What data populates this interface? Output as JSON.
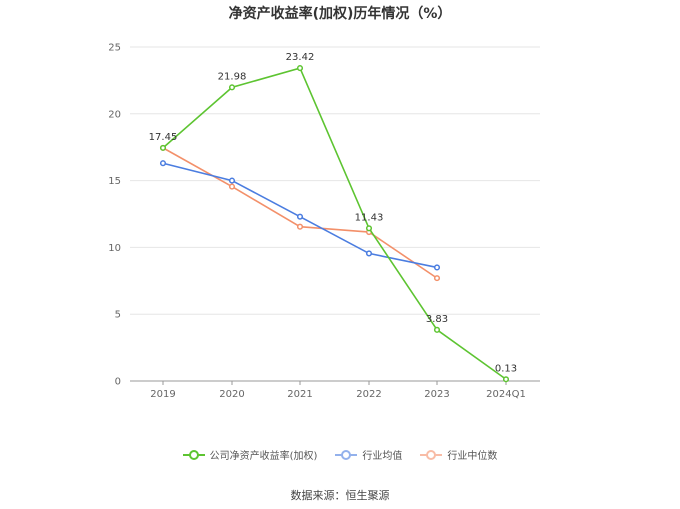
{
  "chart_data": {
    "type": "line",
    "title": "净资产收益率(加权)历年情况（%）",
    "categories": [
      "2019",
      "2020",
      "2021",
      "2022",
      "2023",
      "2024Q1"
    ],
    "yticks": [
      "0",
      "5",
      "10",
      "15",
      "20",
      "25"
    ],
    "ylim": [
      0,
      25
    ],
    "grid": true,
    "legend_position": "bottom",
    "series": [
      {
        "name": "公司净资产收益率(加权)",
        "color": "#5dc431",
        "values": [
          17.45,
          21.98,
          23.42,
          11.43,
          3.83,
          0.13
        ],
        "labels": [
          "17.45",
          "21.98",
          "23.42",
          "11.43",
          "3.83",
          "0.13"
        ]
      },
      {
        "name": "行业均值",
        "color": "#4b7de0",
        "values": [
          16.3,
          15.0,
          12.3,
          9.55,
          8.5,
          null
        ],
        "labels": []
      },
      {
        "name": "行业中位数",
        "color": "#f3906a",
        "values": [
          17.45,
          14.55,
          11.55,
          11.15,
          7.7,
          null
        ],
        "labels": []
      }
    ]
  },
  "source_text": "数据来源：恒生聚源"
}
